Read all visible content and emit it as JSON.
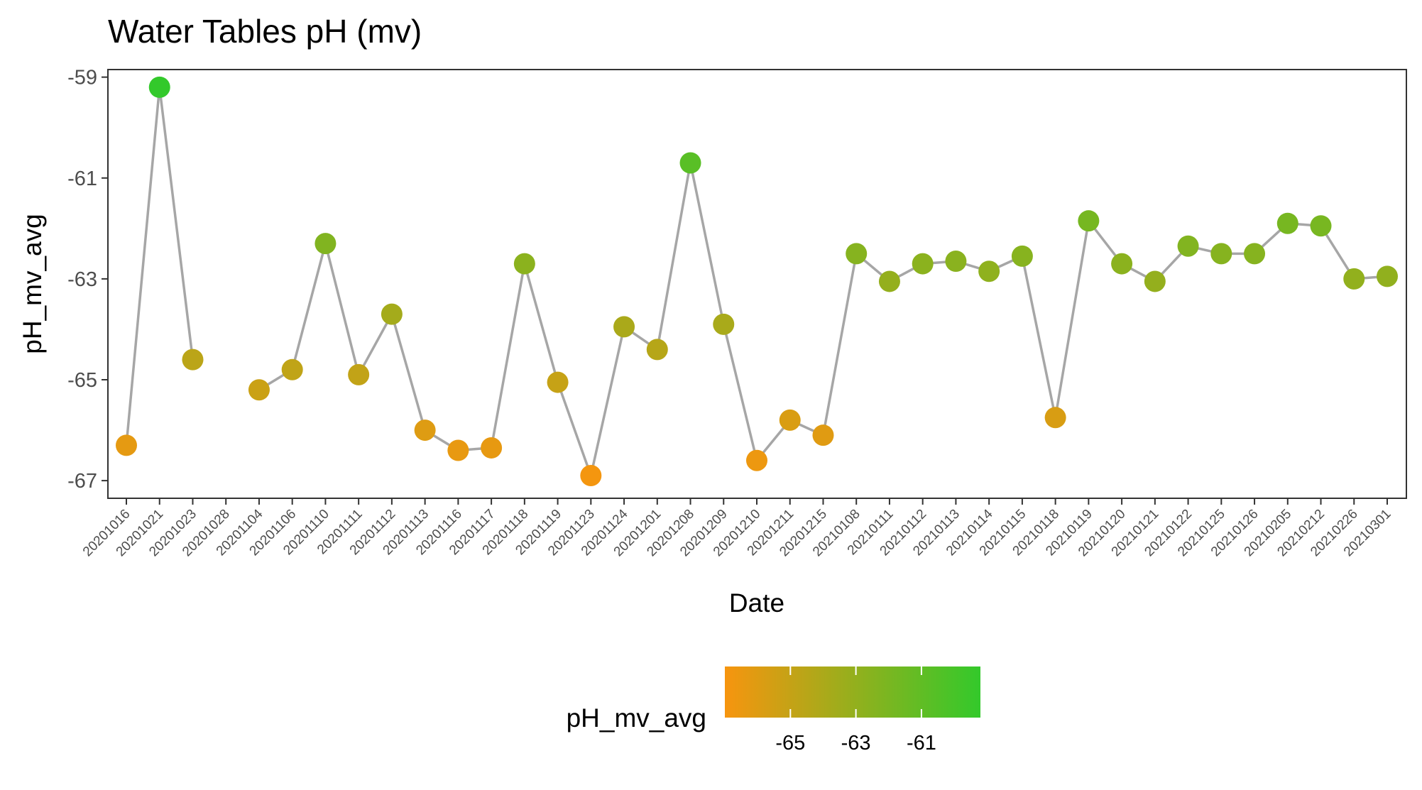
{
  "chart_data": {
    "type": "line",
    "title": "Water Tables pH (mv)",
    "xlabel": "Date",
    "ylabel": "pH_mv_avg",
    "y_reversed": false,
    "ylim": [
      -67.35,
      -58.85
    ],
    "yticks": [
      -59,
      -61,
      -63,
      -65,
      -67
    ],
    "ytick_labels": [
      "-59",
      "-61",
      "-63",
      "-65",
      "-67"
    ],
    "grid": false,
    "line_color": "#a6a6a6",
    "categories": [
      "20201016",
      "20201021",
      "20201023",
      "20201028",
      "20201104",
      "20201106",
      "20201110",
      "20201111",
      "20201112",
      "20201113",
      "20201116",
      "20201117",
      "20201118",
      "20201119",
      "20201123",
      "20201124",
      "20201201",
      "20201208",
      "20201209",
      "20201210",
      "20201211",
      "20201215",
      "20210108",
      "20210111",
      "20210112",
      "20210113",
      "20210114",
      "20210115",
      "20210118",
      "20210119",
      "20210120",
      "20210121",
      "20210122",
      "20210125",
      "20210126",
      "20210205",
      "20210212",
      "20210226",
      "20210301"
    ],
    "series": [
      {
        "values": [
          -66.3,
          -59.2,
          -64.6,
          null,
          -65.2,
          -64.8,
          -62.3,
          -64.9,
          -63.7,
          -66.0,
          -66.4,
          -66.35,
          -62.7,
          -65.05,
          -66.9,
          -63.95,
          -64.4,
          -60.7,
          -63.9,
          -66.6,
          -65.8,
          -66.1,
          -62.5,
          -63.05,
          -62.7,
          -62.65,
          -62.85,
          -62.55,
          -65.75,
          -61.85,
          -62.7,
          -63.05,
          -62.35,
          -62.5,
          -62.5,
          -61.9,
          -61.95,
          -63.0,
          -62.95
        ]
      }
    ],
    "color_scale": {
      "title": "pH_mv_avg",
      "low_color": "#f7950f",
      "high_color": "#33c92b",
      "min": -67.0,
      "max": -59.2,
      "ticks": [
        -65,
        -63,
        -61
      ],
      "tick_labels": [
        "-65",
        "-63",
        "-61"
      ],
      "legend_position": "bottom"
    }
  }
}
